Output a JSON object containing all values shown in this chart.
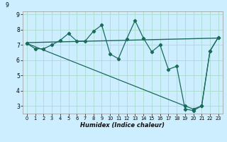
{
  "xlabel": "Humidex (Indice chaleur)",
  "background_color": "#cceeff",
  "grid_color": "#aaddcc",
  "line_color": "#1a6b5a",
  "xlim": [
    -0.5,
    23.5
  ],
  "ylim": [
    2.5,
    9.2
  ],
  "xticks": [
    0,
    1,
    2,
    3,
    4,
    5,
    6,
    7,
    8,
    9,
    10,
    11,
    12,
    13,
    14,
    15,
    16,
    17,
    18,
    19,
    20,
    21,
    22,
    23
  ],
  "yticks": [
    3,
    4,
    5,
    6,
    7,
    8,
    9
  ],
  "series1_x": [
    0,
    1,
    2,
    3,
    4,
    5,
    6,
    7,
    8,
    9,
    10,
    11,
    12,
    13,
    14,
    15,
    16,
    17,
    18,
    19,
    20,
    21,
    22,
    23
  ],
  "series1_y": [
    7.1,
    6.75,
    6.75,
    7.0,
    7.3,
    7.75,
    7.25,
    7.25,
    7.9,
    8.3,
    6.4,
    6.1,
    7.4,
    8.6,
    7.45,
    6.55,
    7.0,
    5.4,
    5.6,
    2.8,
    2.7,
    3.0,
    6.6,
    7.5
  ],
  "series2_x": [
    0,
    19,
    20,
    21,
    22,
    23
  ],
  "series2_y": [
    7.1,
    3.0,
    2.8,
    3.0,
    6.6,
    7.5
  ],
  "series3_x": [
    0,
    23
  ],
  "series3_y": [
    7.15,
    7.45
  ]
}
